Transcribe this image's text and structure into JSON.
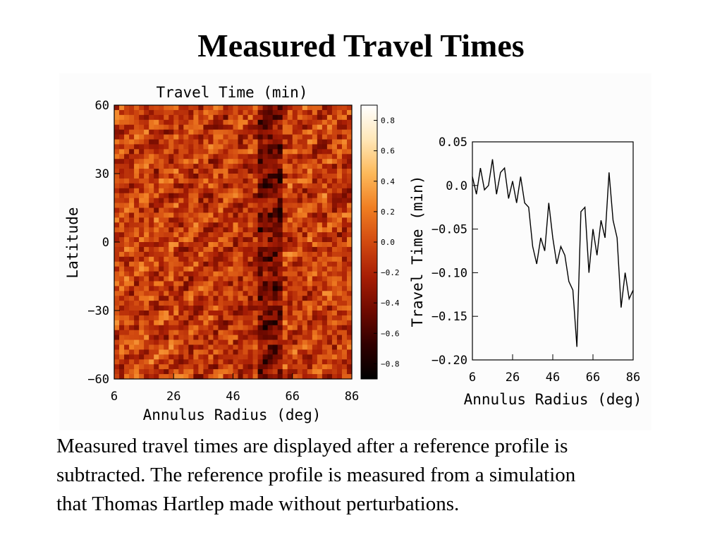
{
  "slide": {
    "title": "Measured Travel Times"
  },
  "caption": {
    "lines": [
      "Measured travel times are displayed after a reference profile is",
      "subtracted. The reference profile is measured from a simulation",
      "that Thomas Hartlep made without perturbations."
    ]
  },
  "colors": {
    "colormap": [
      "#000000",
      "#300000",
      "#700a00",
      "#a81e05",
      "#d24a10",
      "#f07e22",
      "#fdb95a",
      "#ffe7b8",
      "#ffffff"
    ]
  },
  "chart_data": [
    {
      "type": "heatmap",
      "title": "Travel Time (min)",
      "xlabel": "Annulus Radius (deg)",
      "ylabel": "Latitude",
      "xlim": [
        6,
        86
      ],
      "ylim": [
        -60,
        60
      ],
      "xticks": [
        "6",
        "26",
        "46",
        "66",
        "86"
      ],
      "yticks": [
        "60",
        "30",
        "0",
        "−30",
        "−60"
      ],
      "colorbar": {
        "range": [
          -0.9,
          0.9
        ],
        "ticks": [
          "0.8",
          "0.6",
          "0.4",
          "0.2",
          "0.0",
          "−0.2",
          "−0.4",
          "−0.6",
          "−0.8"
        ]
      }
    },
    {
      "type": "line",
      "xlabel": "Annulus Radius (deg)",
      "ylabel": "Travel Time (min)",
      "xlim": [
        6,
        86
      ],
      "ylim": [
        -0.2,
        0.05
      ],
      "xticks": [
        "6",
        "26",
        "46",
        "66",
        "86"
      ],
      "yticks": [
        "0.05",
        "0.0",
        "−0.05",
        "−0.10",
        "−0.15",
        "−0.20"
      ],
      "x": [
        6,
        8,
        10,
        12,
        14,
        16,
        18,
        20,
        22,
        24,
        26,
        28,
        30,
        32,
        34,
        36,
        38,
        40,
        42,
        44,
        46,
        48,
        50,
        52,
        54,
        56,
        58,
        60,
        62,
        64,
        66,
        68,
        70,
        72,
        74,
        76,
        78,
        80,
        82,
        84,
        86
      ],
      "y": [
        0.01,
        -0.01,
        0.02,
        -0.005,
        0.0,
        0.03,
        -0.01,
        0.015,
        0.02,
        -0.015,
        0.005,
        -0.02,
        0.01,
        -0.02,
        -0.025,
        -0.07,
        -0.09,
        -0.06,
        -0.075,
        -0.02,
        -0.06,
        -0.09,
        -0.07,
        -0.08,
        -0.11,
        -0.12,
        -0.185,
        -0.03,
        -0.025,
        -0.1,
        -0.05,
        -0.08,
        -0.04,
        -0.06,
        0.015,
        -0.04,
        -0.06,
        -0.14,
        -0.1,
        -0.13,
        -0.12
      ]
    }
  ]
}
